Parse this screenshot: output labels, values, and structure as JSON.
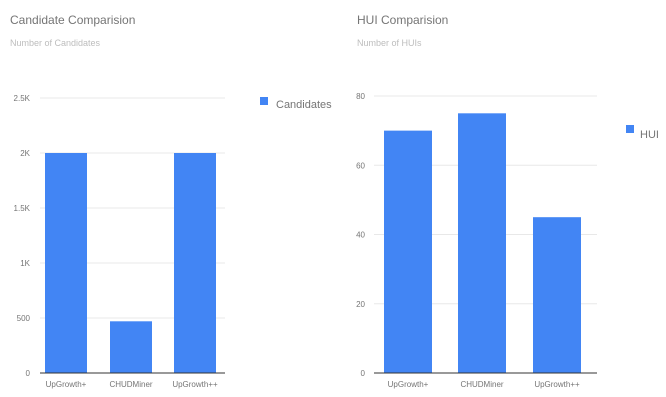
{
  "chart_data": [
    {
      "type": "bar",
      "title": "Candidate Comparision",
      "subtitle": "Number of Candidates",
      "categories": [
        "UpGrowth+",
        "CHUDMiner",
        "UpGrowth++"
      ],
      "series": [
        {
          "name": "Candidates",
          "values": [
            2000,
            470,
            2000
          ]
        }
      ],
      "yticks": [
        0,
        500,
        1000,
        1500,
        2000,
        2500
      ],
      "ytick_labels": [
        "0",
        "500",
        "1K",
        "1.5K",
        "2K",
        "2.5K"
      ],
      "ylim": [
        0,
        2500
      ],
      "legend": "right",
      "grid": true,
      "color": "#4285f4"
    },
    {
      "type": "bar",
      "title": "HUI Comparision",
      "subtitle": "Number of HUIs",
      "categories": [
        "UpGrowth+",
        "CHUDMiner",
        "UpGrowth++"
      ],
      "series": [
        {
          "name": "HUI",
          "values": [
            70,
            75,
            45
          ]
        }
      ],
      "yticks": [
        0,
        20,
        40,
        60,
        80
      ],
      "ytick_labels": [
        "0",
        "20",
        "40",
        "60",
        "80"
      ],
      "ylim": [
        0,
        80
      ],
      "legend": "right",
      "grid": true,
      "color": "#4285f4"
    }
  ]
}
